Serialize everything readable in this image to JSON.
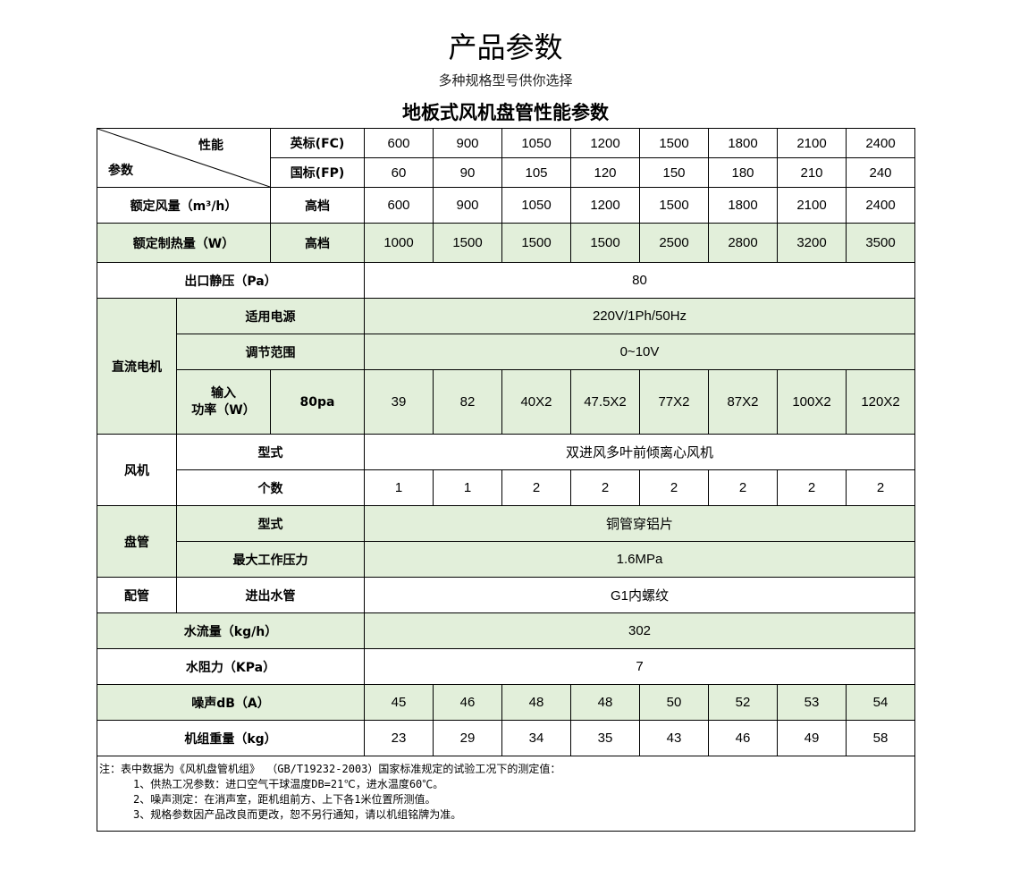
{
  "title": "产品参数",
  "subtitle": "多种规格型号供你选择",
  "table_title": "地板式风机盘管性能参数",
  "colors": {
    "green": "#e2efda",
    "border": "#000000"
  },
  "header": {
    "perf": "性能",
    "param": "参数",
    "fc_label": "英标(FC)",
    "fp_label": "国标(FP)",
    "fc": [
      "600",
      "900",
      "1050",
      "1200",
      "1500",
      "1800",
      "2100",
      "2400"
    ],
    "fp": [
      "60",
      "90",
      "105",
      "120",
      "150",
      "180",
      "210",
      "240"
    ]
  },
  "airflow": {
    "label": "额定风量（m³/h）",
    "mode": "高档",
    "values": [
      "600",
      "900",
      "1050",
      "1200",
      "1500",
      "1800",
      "2100",
      "2400"
    ]
  },
  "heating": {
    "label": "额定制热量（W）",
    "mode": "高档",
    "values": [
      "1000",
      "1500",
      "1500",
      "1500",
      "2500",
      "2800",
      "3200",
      "3500"
    ]
  },
  "pressure": {
    "label": "出口静压（Pa）",
    "value": "80"
  },
  "motor": {
    "label": "直流电机",
    "power_label": "适用电源",
    "power": "220V/1Ph/50Hz",
    "range_label": "调节范围",
    "range": "0~10V",
    "input_label": "输入\n功率（W）",
    "input_cond": "80pa",
    "input": [
      "39",
      "82",
      "40X2",
      "47.5X2",
      "77X2",
      "87X2",
      "100X2",
      "120X2"
    ]
  },
  "fan": {
    "label": "风机",
    "type_label": "型式",
    "type": "双进风多叶前倾离心风机",
    "count_label": "个数",
    "count": [
      "1",
      "1",
      "2",
      "2",
      "2",
      "2",
      "2",
      "2"
    ]
  },
  "coil": {
    "label": "盘管",
    "type_label": "型式",
    "type": "铜管穿铝片",
    "maxp_label": "最大工作压力",
    "maxp": "1.6MPa"
  },
  "pipe": {
    "label": "配管",
    "io_label": "进出水管",
    "io": "G1内螺纹"
  },
  "waterflow": {
    "label": "水流量（kg/h）",
    "value": "302"
  },
  "resistance": {
    "label": "水阻力（KPa）",
    "value": "7"
  },
  "noise": {
    "label": "噪声dB（A）",
    "values": [
      "45",
      "46",
      "48",
      "48",
      "50",
      "52",
      "53",
      "54"
    ]
  },
  "weight": {
    "label": "机组重量（kg）",
    "values": [
      "23",
      "29",
      "34",
      "35",
      "43",
      "46",
      "49",
      "58"
    ]
  },
  "notes": [
    "注：表中数据为《风机盘管机组》 （GB/T19232-2003）国家标准规定的试验工况下的测定值：",
    "1、供热工况参数：进口空气干球温度DB=21℃，进水温度60℃。",
    "2、噪声测定：在消声室，距机组前方、上下各1米位置所测值。",
    "3、规格参数因产品改良而更改，恕不另行通知，请以机组铭牌为准。"
  ]
}
